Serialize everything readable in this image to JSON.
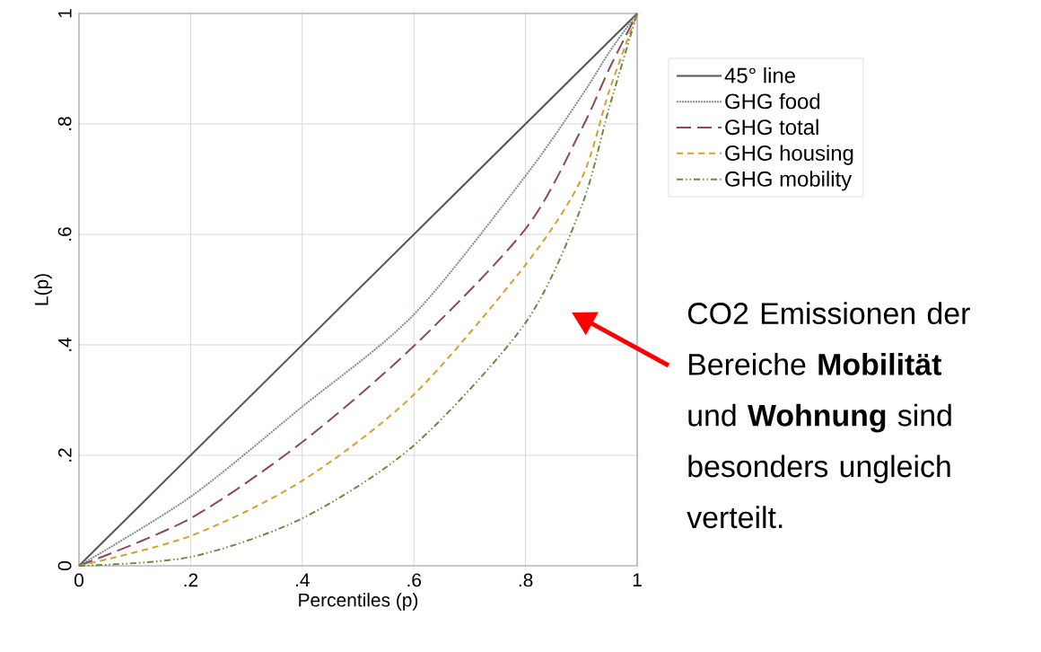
{
  "chart_data": {
    "type": "line",
    "xlabel": "Percentiles (p)",
    "ylabel": "L(p)",
    "xlim": [
      0,
      1
    ],
    "ylim": [
      0,
      1
    ],
    "xticks": [
      0,
      {
        "value": 0.2,
        "label": ".2"
      },
      {
        "value": 0.4,
        "label": ".4"
      },
      {
        "value": 0.6,
        "label": ".6"
      },
      {
        "value": 0.8,
        "label": ".8"
      },
      1
    ],
    "yticks": [
      0,
      {
        "value": 0.2,
        "label": ".2"
      },
      {
        "value": 0.4,
        "label": ".4"
      },
      {
        "value": 0.6,
        "label": ".6"
      },
      {
        "value": 0.8,
        "label": ".8"
      },
      1
    ],
    "grid": true,
    "legend": "right",
    "series": [
      {
        "name": "45° line",
        "color": "#555555",
        "line_style": "solid",
        "x": [
          0,
          1
        ],
        "values": [
          0,
          1
        ]
      },
      {
        "name": "GHG food",
        "color": "#7d8d9c",
        "line_style": "dotted",
        "x": [
          0,
          0.2,
          0.4,
          0.6,
          0.8,
          0.9,
          0.95,
          1
        ],
        "values": [
          0,
          0.125,
          0.288,
          0.455,
          0.706,
          0.85,
          0.93,
          1
        ]
      },
      {
        "name": "GHG total",
        "color": "#8b4a55",
        "line_style": "long dashed",
        "x": [
          0,
          0.2,
          0.4,
          0.6,
          0.8,
          0.9,
          0.95,
          1
        ],
        "values": [
          0,
          0.086,
          0.224,
          0.398,
          0.61,
          0.79,
          0.9,
          1
        ]
      },
      {
        "name": "GHG housing",
        "color": "#d4a030",
        "line_style": "dashed",
        "x": [
          0,
          0.2,
          0.4,
          0.6,
          0.8,
          0.9,
          0.95,
          1
        ],
        "values": [
          0,
          0.054,
          0.154,
          0.31,
          0.545,
          0.7,
          0.86,
          1
        ]
      },
      {
        "name": "GHG mobility",
        "color": "#6b8a40",
        "line_style": "dashdot",
        "x": [
          0,
          0.2,
          0.4,
          0.6,
          0.8,
          0.9,
          0.95,
          1
        ],
        "values": [
          0,
          0.016,
          0.086,
          0.218,
          0.44,
          0.65,
          0.83,
          1
        ]
      }
    ],
    "annotations": [
      "CO2 Emissionen der Bereiche **Mobilität** und **Wohnung** sind besonders ungleich verteilt."
    ]
  }
}
